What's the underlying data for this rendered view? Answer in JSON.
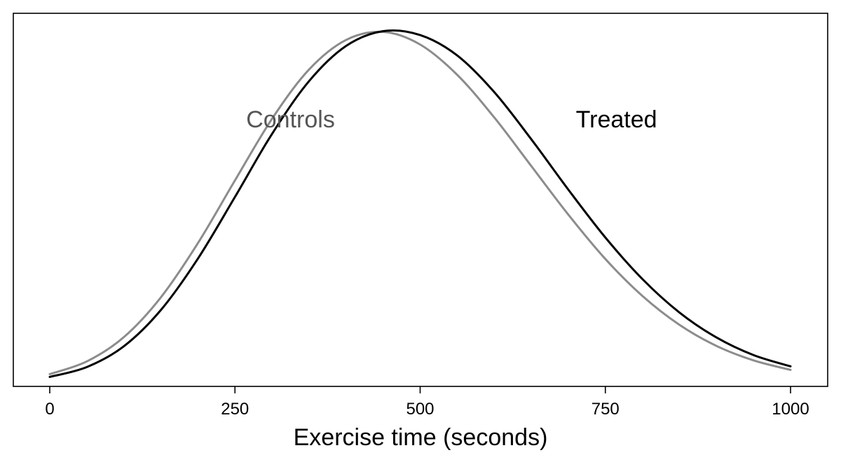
{
  "chart_data": {
    "type": "line",
    "title": "",
    "xlabel": "Exercise time (seconds)",
    "ylabel": "",
    "xlim": [
      0,
      1000
    ],
    "ylim": [
      0,
      1.02
    ],
    "xticks": [
      0,
      250,
      500,
      750,
      1000
    ],
    "xtick_labels": [
      "0",
      "250",
      "500",
      "750",
      "1000"
    ],
    "grid": false,
    "legend": "none",
    "series": [
      {
        "name": "Controls",
        "color": "#8c8c8c",
        "x": [
          0,
          50,
          100,
          150,
          200,
          250,
          300,
          350,
          400,
          450,
          500,
          550,
          600,
          650,
          700,
          750,
          800,
          850,
          900,
          950,
          1000
        ],
        "y": [
          0.025,
          0.061,
          0.13,
          0.243,
          0.397,
          0.575,
          0.75,
          0.89,
          0.974,
          0.997,
          0.961,
          0.875,
          0.754,
          0.616,
          0.478,
          0.352,
          0.247,
          0.165,
          0.105,
          0.064,
          0.037
        ]
      },
      {
        "name": "Treated",
        "color": "#000000",
        "x": [
          0,
          50,
          100,
          150,
          200,
          250,
          300,
          350,
          400,
          450,
          500,
          550,
          600,
          650,
          700,
          750,
          800,
          850,
          900,
          950,
          1000
        ],
        "y": [
          0.017,
          0.045,
          0.104,
          0.207,
          0.353,
          0.528,
          0.707,
          0.857,
          0.957,
          0.999,
          0.988,
          0.93,
          0.826,
          0.692,
          0.549,
          0.413,
          0.295,
          0.2,
          0.129,
          0.079,
          0.047
        ]
      }
    ],
    "annotations": [
      {
        "text": "Controls",
        "series": "Controls",
        "x": 325,
        "y": 0.75
      },
      {
        "text": "Treated",
        "series": "Treated",
        "x": 765,
        "y": 0.75
      }
    ]
  }
}
